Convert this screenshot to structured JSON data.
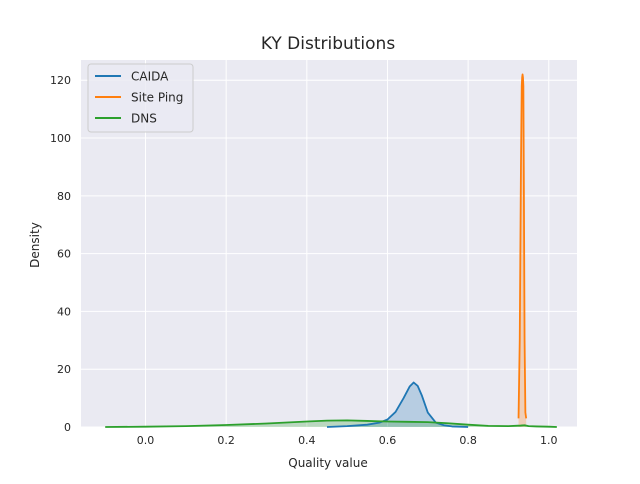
{
  "chart_data": {
    "type": "line",
    "title": "KY Distributions",
    "xlabel": "Quality value",
    "ylabel": "Density",
    "xlim": [
      -0.16,
      1.07
    ],
    "ylim": [
      0,
      127
    ],
    "xticks": [
      0.0,
      0.2,
      0.4,
      0.6,
      0.8,
      1.0
    ],
    "xtick_labels": [
      "0.0",
      "0.2",
      "0.4",
      "0.6",
      "0.8",
      "1.0"
    ],
    "yticks": [
      0,
      20,
      40,
      60,
      80,
      100,
      120
    ],
    "ytick_labels": [
      "0",
      "20",
      "40",
      "60",
      "80",
      "100",
      "120"
    ],
    "grid": true,
    "legend_position": "top-left",
    "fill_under": true,
    "series": [
      {
        "name": "CAIDA",
        "color": "#1f77b4",
        "x": [
          0.45,
          0.5,
          0.55,
          0.58,
          0.6,
          0.62,
          0.64,
          0.655,
          0.665,
          0.675,
          0.685,
          0.7,
          0.72,
          0.74,
          0.76,
          0.78,
          0.8
        ],
        "y": [
          0.0,
          0.3,
          0.8,
          1.5,
          2.6,
          5.2,
          10.0,
          14.0,
          15.4,
          14.2,
          11.0,
          5.0,
          1.5,
          0.6,
          0.2,
          0.1,
          0.0
        ]
      },
      {
        "name": "Site Ping",
        "color": "#ff7f0e",
        "x": [
          0.925,
          0.928,
          0.931,
          0.933,
          0.934,
          0.935,
          0.936,
          0.937,
          0.938,
          0.94,
          0.942,
          0.944
        ],
        "y": [
          3,
          30,
          90,
          118,
          121,
          122,
          121,
          118,
          90,
          30,
          5,
          3
        ]
      },
      {
        "name": "DNS",
        "color": "#2ca02c",
        "x": [
          -0.1,
          0.0,
          0.1,
          0.2,
          0.3,
          0.4,
          0.45,
          0.5,
          0.55,
          0.6,
          0.65,
          0.7,
          0.75,
          0.8,
          0.85,
          0.9,
          0.93,
          0.94,
          0.95,
          0.97,
          1.0,
          1.02
        ],
        "y": [
          0.0,
          0.1,
          0.3,
          0.7,
          1.2,
          1.9,
          2.2,
          2.3,
          2.1,
          1.9,
          1.8,
          1.7,
          1.3,
          0.8,
          0.4,
          0.3,
          0.5,
          0.6,
          0.3,
          0.2,
          0.1,
          0.0
        ]
      }
    ]
  }
}
